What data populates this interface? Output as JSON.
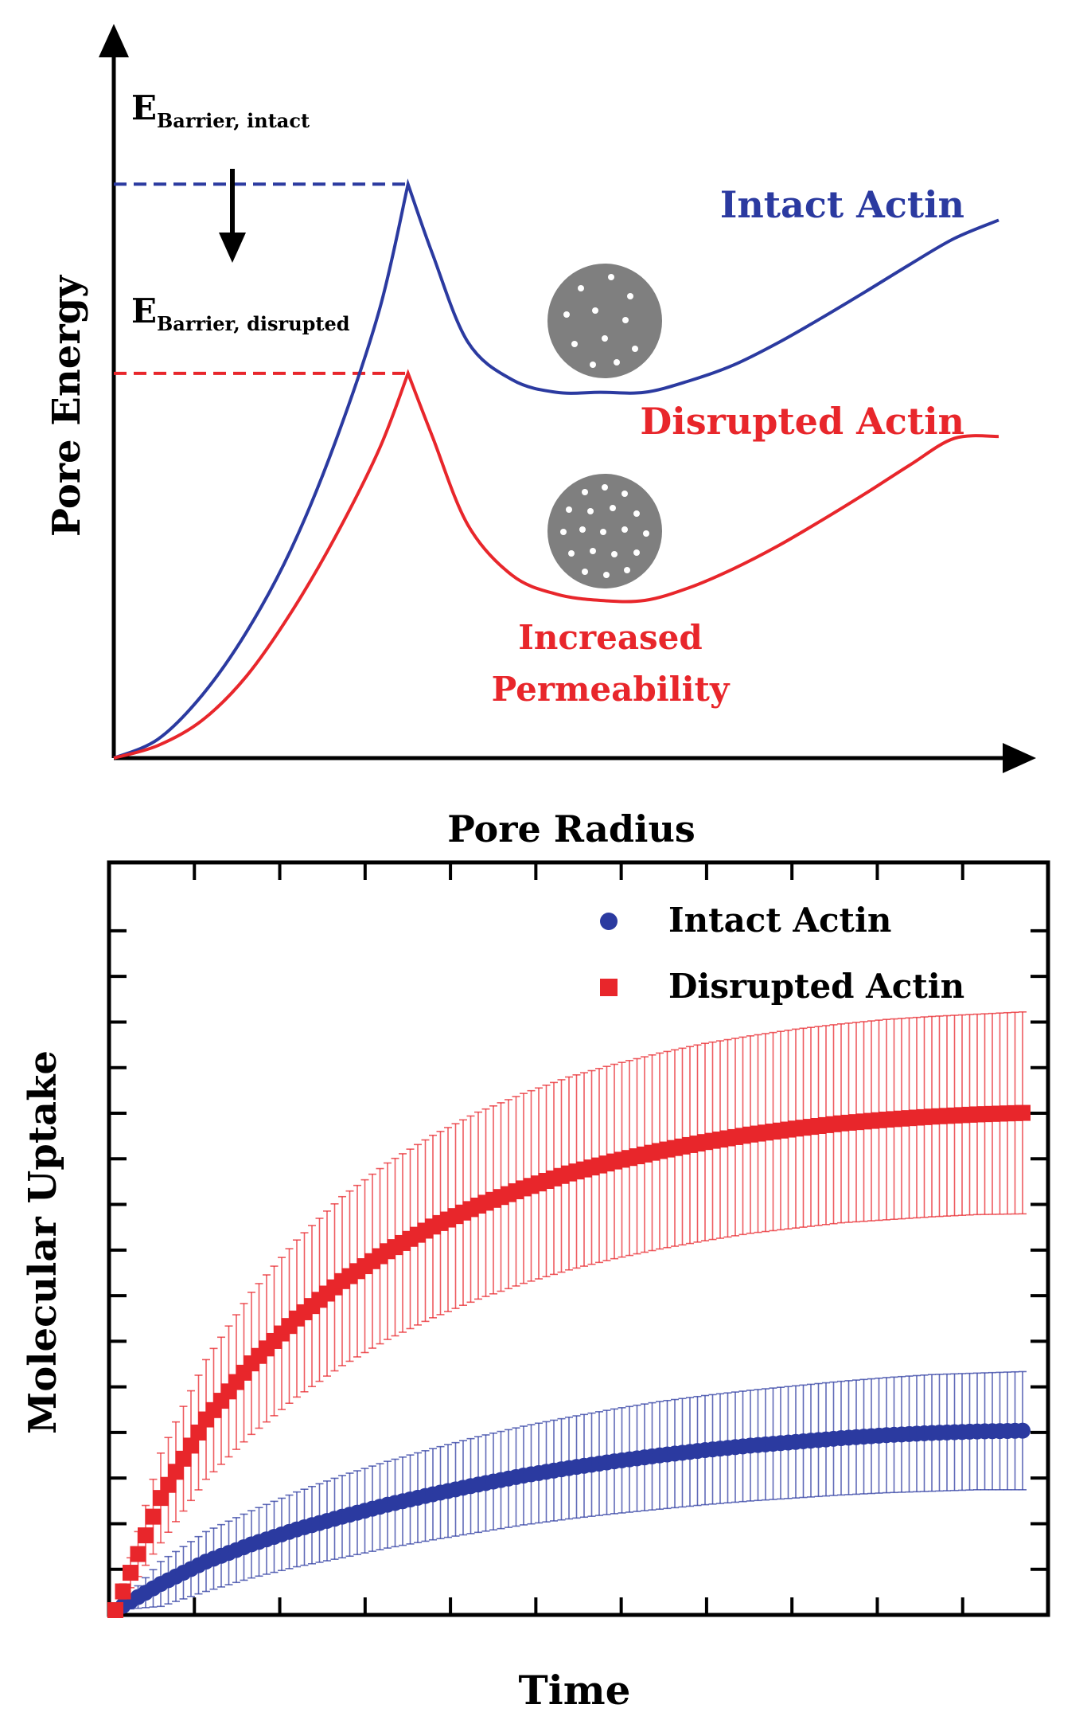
{
  "chart_data": [
    {
      "type": "line",
      "axes": {
        "xlabel": "Pore Radius",
        "ylabel": "Pore Energy",
        "ticks": false,
        "arrows": true
      },
      "barriers": [
        {
          "label_main": "E",
          "label_sub": "Barrier, intact",
          "value": 0.91,
          "color": "#2b3aa0"
        },
        {
          "label_main": "E",
          "label_sub": "Barrier, disrupted",
          "value": 0.61,
          "color": "#e8262b"
        }
      ],
      "series": [
        {
          "name": "Intact Actin",
          "color": "#2b3aa0",
          "x": [
            0.0,
            0.05,
            0.1,
            0.15,
            0.2,
            0.25,
            0.3,
            0.3325,
            0.36,
            0.4,
            0.45,
            0.5,
            0.55,
            0.6,
            0.65,
            0.7,
            0.75,
            0.8,
            0.85,
            0.9,
            0.95,
            1.0
          ],
          "y": [
            0.0,
            0.03,
            0.1,
            0.2,
            0.33,
            0.5,
            0.71,
            0.91,
            0.8,
            0.66,
            0.6,
            0.58,
            0.58,
            0.58,
            0.598,
            0.623,
            0.658,
            0.698,
            0.74,
            0.783,
            0.824,
            0.853
          ]
        },
        {
          "name": "Disrupted Actin",
          "color": "#e8262b",
          "x": [
            0.0,
            0.05,
            0.1,
            0.15,
            0.2,
            0.25,
            0.3,
            0.3325,
            0.36,
            0.4,
            0.45,
            0.5,
            0.55,
            0.6,
            0.65,
            0.7,
            0.75,
            0.8,
            0.85,
            0.9,
            0.95,
            1.0
          ],
          "y": [
            0.0,
            0.02,
            0.06,
            0.13,
            0.23,
            0.35,
            0.49,
            0.61,
            0.51,
            0.37,
            0.29,
            0.26,
            0.25,
            0.25,
            0.27,
            0.3,
            0.336,
            0.377,
            0.42,
            0.465,
            0.507,
            0.51
          ]
        }
      ],
      "annotations": [
        "Increased",
        "Permeability"
      ],
      "insets": [
        "membrane-few-pores",
        "membrane-many-pores"
      ]
    },
    {
      "type": "scatter",
      "xlabel": "Time",
      "ylabel": "Molecular Uptake",
      "xlim": [
        0,
        1
      ],
      "ylim": [
        0,
        1
      ],
      "legend": "top-right",
      "series": [
        {
          "name": "Intact Actin",
          "marker": "circle",
          "color": "#2b3aa0",
          "x": [
            0.0,
            0.05,
            0.1,
            0.15,
            0.2,
            0.25,
            0.3,
            0.35,
            0.4,
            0.45,
            0.5,
            0.55,
            0.6,
            0.65,
            0.7,
            0.75,
            0.8,
            0.85,
            0.9,
            0.95,
            1.0
          ],
          "y": [
            0.0,
            0.035,
            0.065,
            0.088,
            0.108,
            0.125,
            0.141,
            0.155,
            0.168,
            0.18,
            0.19,
            0.199,
            0.207,
            0.214,
            0.22,
            0.225,
            0.23,
            0.234,
            0.237,
            0.239,
            0.24
          ],
          "err": [
            0.0,
            0.03,
            0.04,
            0.045,
            0.05,
            0.055,
            0.058,
            0.061,
            0.064,
            0.066,
            0.068,
            0.07,
            0.072,
            0.073,
            0.074,
            0.075,
            0.076,
            0.077,
            0.078,
            0.078,
            0.079
          ]
        },
        {
          "name": "Disrupted Actin",
          "marker": "square",
          "color": "#e8262b",
          "x": [
            0.0,
            0.05,
            0.1,
            0.15,
            0.2,
            0.25,
            0.3,
            0.35,
            0.4,
            0.45,
            0.5,
            0.55,
            0.6,
            0.65,
            0.7,
            0.75,
            0.8,
            0.85,
            0.9,
            0.95,
            1.0
          ],
          "y": [
            0.0,
            0.15,
            0.255,
            0.33,
            0.39,
            0.44,
            0.48,
            0.513,
            0.541,
            0.564,
            0.584,
            0.6,
            0.614,
            0.626,
            0.636,
            0.644,
            0.651,
            0.656,
            0.66,
            0.663,
            0.665
          ],
          "err": [
            0.0,
            0.06,
            0.08,
            0.095,
            0.105,
            0.113,
            0.118,
            0.122,
            0.125,
            0.127,
            0.129,
            0.13,
            0.131,
            0.132,
            0.132,
            0.133,
            0.133,
            0.134,
            0.134,
            0.134,
            0.135
          ]
        }
      ]
    }
  ]
}
